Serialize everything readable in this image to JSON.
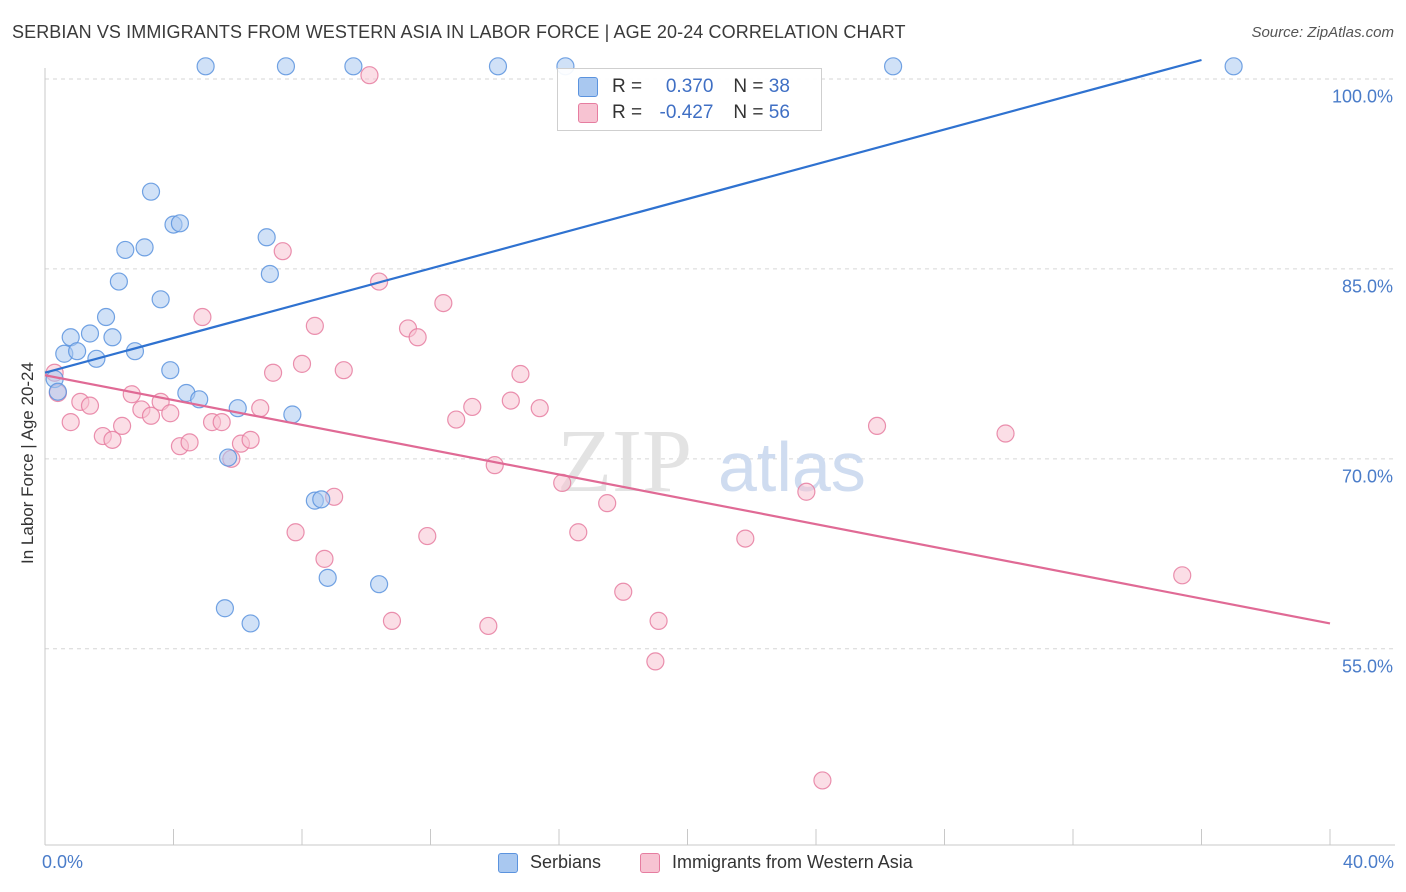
{
  "title": "SERBIAN VS IMMIGRANTS FROM WESTERN ASIA IN LABOR FORCE | AGE 20-24 CORRELATION CHART",
  "source": "Source: ZipAtlas.com",
  "watermark": {
    "bold": "ZIP",
    "light": "atlas"
  },
  "colors": {
    "serbians_fill": "#a9c8f0",
    "serbians_stroke": "#5b93de",
    "serbians_line": "#2f72d0",
    "western_fill": "#f7c3d2",
    "western_stroke": "#e67da0",
    "western_line": "#e06a95",
    "axis_text": "#4a7cc9"
  },
  "legend_top": [
    {
      "r_label": "R =",
      "r_value": "0.370",
      "n_label": "N =",
      "n_value": "38"
    },
    {
      "r_label": "R =",
      "r_value": "-0.427",
      "n_label": "N =",
      "n_value": "56"
    }
  ],
  "chart_data": {
    "type": "scatter",
    "title": "SERBIAN VS IMMIGRANTS FROM WESTERN ASIA IN LABOR FORCE | AGE 20-24 CORRELATION CHART",
    "xlabel": "",
    "ylabel": "In Labor Force | Age 20-24",
    "xlim": [
      0,
      40
    ],
    "ylim": [
      39.5,
      101.5
    ],
    "x_tick_labels": [
      "0.0%",
      "40.0%"
    ],
    "y_ticks": [
      55,
      70,
      85,
      100
    ],
    "y_tick_labels": [
      "55.0%",
      "70.0%",
      "85.0%",
      "100.0%"
    ],
    "grid": true,
    "legend_position": "bottom-center",
    "series": [
      {
        "name": "Serbians",
        "r": 0.37,
        "n": 38,
        "trend": {
          "x": [
            0.0,
            36.0
          ],
          "y": [
            76.8,
            101.5
          ]
        },
        "points": [
          [
            0.3,
            76.3
          ],
          [
            0.4,
            75.3
          ],
          [
            0.6,
            78.3
          ],
          [
            0.8,
            79.6
          ],
          [
            1.0,
            78.5
          ],
          [
            1.4,
            79.9
          ],
          [
            1.6,
            77.9
          ],
          [
            1.9,
            81.2
          ],
          [
            2.1,
            79.6
          ],
          [
            2.3,
            84.0
          ],
          [
            2.5,
            86.5
          ],
          [
            2.8,
            78.5
          ],
          [
            3.1,
            86.7
          ],
          [
            3.3,
            91.1
          ],
          [
            3.6,
            82.6
          ],
          [
            3.9,
            77.0
          ],
          [
            4.0,
            88.5
          ],
          [
            4.2,
            88.6
          ],
          [
            4.4,
            75.2
          ],
          [
            4.8,
            74.7
          ],
          [
            5.0,
            101.0
          ],
          [
            5.6,
            58.2
          ],
          [
            5.7,
            70.1
          ],
          [
            6.0,
            74.0
          ],
          [
            6.4,
            57.0
          ],
          [
            6.9,
            87.5
          ],
          [
            7.0,
            84.6
          ],
          [
            7.5,
            101.0
          ],
          [
            7.7,
            73.5
          ],
          [
            8.4,
            66.7
          ],
          [
            8.6,
            66.8
          ],
          [
            8.8,
            60.6
          ],
          [
            9.6,
            101.0
          ],
          [
            10.4,
            60.1
          ],
          [
            14.1,
            101.0
          ],
          [
            16.2,
            101.0
          ],
          [
            26.4,
            101.0
          ],
          [
            37.0,
            101.0
          ]
        ]
      },
      {
        "name": "Immigrants from Western Asia",
        "r": -0.427,
        "n": 56,
        "trend": {
          "x": [
            0.0,
            40.0
          ],
          "y": [
            76.6,
            57.0
          ]
        },
        "points": [
          [
            0.3,
            76.8
          ],
          [
            0.4,
            75.2
          ],
          [
            0.8,
            72.9
          ],
          [
            1.1,
            74.5
          ],
          [
            1.4,
            74.2
          ],
          [
            1.8,
            71.8
          ],
          [
            2.1,
            71.5
          ],
          [
            2.4,
            72.6
          ],
          [
            2.7,
            75.1
          ],
          [
            3.0,
            73.9
          ],
          [
            3.3,
            73.4
          ],
          [
            3.6,
            74.5
          ],
          [
            3.9,
            73.6
          ],
          [
            4.2,
            71.0
          ],
          [
            4.5,
            71.3
          ],
          [
            4.9,
            81.2
          ],
          [
            5.2,
            72.9
          ],
          [
            5.5,
            72.9
          ],
          [
            5.8,
            70.0
          ],
          [
            6.1,
            71.2
          ],
          [
            6.4,
            71.5
          ],
          [
            6.7,
            74.0
          ],
          [
            7.1,
            76.8
          ],
          [
            7.4,
            86.4
          ],
          [
            7.8,
            64.2
          ],
          [
            8.0,
            77.5
          ],
          [
            8.4,
            80.5
          ],
          [
            8.7,
            62.1
          ],
          [
            9.0,
            67.0
          ],
          [
            9.3,
            77.0
          ],
          [
            10.1,
            100.3
          ],
          [
            10.4,
            84.0
          ],
          [
            10.8,
            57.2
          ],
          [
            11.3,
            80.3
          ],
          [
            11.6,
            79.6
          ],
          [
            11.9,
            63.9
          ],
          [
            12.4,
            82.3
          ],
          [
            12.8,
            73.1
          ],
          [
            13.3,
            74.1
          ],
          [
            13.8,
            56.8
          ],
          [
            14.0,
            69.5
          ],
          [
            14.5,
            74.6
          ],
          [
            14.8,
            76.7
          ],
          [
            15.4,
            74.0
          ],
          [
            16.1,
            68.1
          ],
          [
            16.6,
            64.2
          ],
          [
            17.5,
            66.5
          ],
          [
            18.0,
            59.5
          ],
          [
            19.1,
            57.2
          ],
          [
            19.0,
            54.0
          ],
          [
            21.8,
            63.7
          ],
          [
            23.7,
            67.4
          ],
          [
            25.9,
            72.6
          ],
          [
            29.9,
            72.0
          ],
          [
            35.4,
            60.8
          ],
          [
            24.2,
            44.6
          ]
        ]
      }
    ]
  }
}
